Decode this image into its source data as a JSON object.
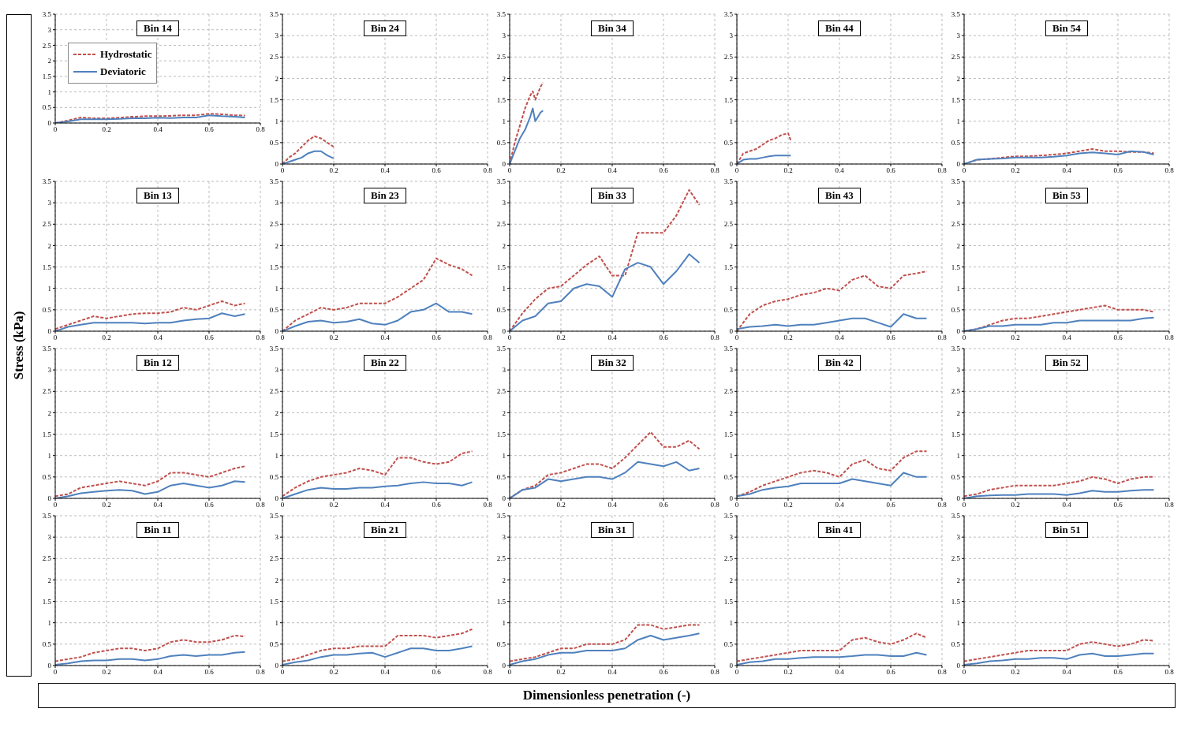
{
  "chart_data": [
    {
      "type": "line",
      "title": "Bin 14",
      "legend": "top left",
      "grid": true,
      "xlim": [
        0,
        0.8
      ],
      "ylim": [
        0,
        3.5
      ],
      "xticks": [
        0,
        0.2,
        0.4,
        0.6,
        0.8
      ],
      "yticks": [
        0,
        0.5,
        1,
        1.5,
        2,
        2.5,
        3,
        3.5
      ],
      "x": [
        0,
        0.05,
        0.1,
        0.15,
        0.2,
        0.25,
        0.3,
        0.35,
        0.4,
        0.45,
        0.5,
        0.55,
        0.6,
        0.65,
        0.7,
        0.74
      ],
      "series": [
        {
          "name": "Hydrostatic",
          "color": "#c0504d",
          "line_style": "dashed",
          "values": [
            0,
            0.08,
            0.18,
            0.15,
            0.15,
            0.17,
            0.2,
            0.22,
            0.22,
            0.23,
            0.25,
            0.25,
            0.3,
            0.28,
            0.25,
            0.24
          ]
        },
        {
          "name": "Deviatoric",
          "color": "#4f81bd",
          "line_style": "solid",
          "values": [
            0,
            0.05,
            0.12,
            0.12,
            0.12,
            0.13,
            0.15,
            0.15,
            0.17,
            0.16,
            0.18,
            0.18,
            0.25,
            0.22,
            0.2,
            0.18
          ]
        }
      ]
    },
    {
      "type": "line",
      "title": "Bin 24",
      "grid": true,
      "xlim": [
        0,
        0.8
      ],
      "ylim": [
        0,
        3.5
      ],
      "xticks": [
        0,
        0.2,
        0.4,
        0.6,
        0.8
      ],
      "yticks": [
        0,
        0.5,
        1,
        1.5,
        2,
        2.5,
        3,
        3.5
      ],
      "x": [
        0,
        0.025,
        0.05,
        0.075,
        0.1,
        0.125,
        0.15,
        0.175,
        0.2
      ],
      "series": [
        {
          "color": "#c0504d",
          "line_style": "dashed",
          "values": [
            0,
            0.15,
            0.25,
            0.4,
            0.55,
            0.65,
            0.6,
            0.5,
            0.4
          ]
        },
        {
          "color": "#4f81bd",
          "line_style": "solid",
          "values": [
            0,
            0.05,
            0.1,
            0.15,
            0.25,
            0.3,
            0.3,
            0.2,
            0.13
          ]
        }
      ]
    },
    {
      "type": "line",
      "title": "Bin 34",
      "grid": true,
      "xlim": [
        0,
        0.8
      ],
      "ylim": [
        0,
        3.5
      ],
      "xticks": [
        0,
        0.2,
        0.4,
        0.6,
        0.8
      ],
      "yticks": [
        0,
        0.5,
        1,
        1.5,
        2,
        2.5,
        3,
        3.5
      ],
      "x": [
        0,
        0.02,
        0.04,
        0.06,
        0.08,
        0.09,
        0.1,
        0.12,
        0.13
      ],
      "series": [
        {
          "color": "#c0504d",
          "line_style": "dashed",
          "values": [
            0,
            0.5,
            0.9,
            1.3,
            1.6,
            1.7,
            1.5,
            1.8,
            1.9
          ]
        },
        {
          "color": "#4f81bd",
          "line_style": "solid",
          "values": [
            0,
            0.3,
            0.6,
            0.8,
            1.1,
            1.3,
            1.0,
            1.2,
            1.25
          ]
        }
      ]
    },
    {
      "type": "line",
      "title": "Bin 44",
      "grid": true,
      "xlim": [
        0,
        0.8
      ],
      "ylim": [
        0,
        3.5
      ],
      "xticks": [
        0,
        0.2,
        0.4,
        0.6,
        0.8
      ],
      "yticks": [
        0,
        0.5,
        1,
        1.5,
        2,
        2.5,
        3,
        3.5
      ],
      "x": [
        0,
        0.025,
        0.05,
        0.075,
        0.1,
        0.125,
        0.15,
        0.175,
        0.2,
        0.21
      ],
      "series": [
        {
          "color": "#c0504d",
          "line_style": "dashed",
          "values": [
            0,
            0.25,
            0.3,
            0.35,
            0.45,
            0.55,
            0.6,
            0.68,
            0.72,
            0.55
          ]
        },
        {
          "color": "#4f81bd",
          "line_style": "solid",
          "values": [
            0,
            0.1,
            0.12,
            0.12,
            0.15,
            0.18,
            0.2,
            0.2,
            0.2,
            0.2
          ]
        }
      ]
    },
    {
      "type": "line",
      "title": "Bin 54",
      "grid": true,
      "xlim": [
        0,
        0.8
      ],
      "ylim": [
        0,
        3.5
      ],
      "xticks": [
        0,
        0.2,
        0.4,
        0.6,
        0.8
      ],
      "yticks": [
        0,
        0.5,
        1,
        1.5,
        2,
        2.5,
        3,
        3.5
      ],
      "x": [
        0,
        0.05,
        0.1,
        0.15,
        0.2,
        0.25,
        0.3,
        0.35,
        0.4,
        0.45,
        0.5,
        0.55,
        0.6,
        0.65,
        0.7,
        0.74
      ],
      "series": [
        {
          "color": "#c0504d",
          "line_style": "dashed",
          "values": [
            0,
            0.1,
            0.12,
            0.15,
            0.18,
            0.18,
            0.2,
            0.22,
            0.25,
            0.3,
            0.35,
            0.3,
            0.3,
            0.28,
            0.28,
            0.25
          ]
        },
        {
          "color": "#4f81bd",
          "line_style": "solid",
          "values": [
            0,
            0.1,
            0.12,
            0.13,
            0.15,
            0.15,
            0.15,
            0.17,
            0.2,
            0.25,
            0.27,
            0.25,
            0.22,
            0.3,
            0.28,
            0.22
          ]
        }
      ]
    },
    {
      "type": "line",
      "title": "Bin 13",
      "grid": true,
      "xlim": [
        0,
        0.8
      ],
      "ylim": [
        0,
        3.5
      ],
      "xticks": [
        0,
        0.2,
        0.4,
        0.6,
        0.8
      ],
      "yticks": [
        0,
        0.5,
        1,
        1.5,
        2,
        2.5,
        3,
        3.5
      ],
      "x": [
        0,
        0.05,
        0.1,
        0.15,
        0.2,
        0.25,
        0.3,
        0.35,
        0.4,
        0.45,
        0.5,
        0.55,
        0.6,
        0.65,
        0.7,
        0.74
      ],
      "series": [
        {
          "color": "#c0504d",
          "line_style": "dashed",
          "values": [
            0.05,
            0.15,
            0.25,
            0.35,
            0.3,
            0.35,
            0.4,
            0.42,
            0.42,
            0.45,
            0.55,
            0.5,
            0.6,
            0.7,
            0.6,
            0.65
          ]
        },
        {
          "color": "#4f81bd",
          "line_style": "solid",
          "values": [
            0,
            0.1,
            0.15,
            0.2,
            0.2,
            0.2,
            0.2,
            0.18,
            0.2,
            0.2,
            0.25,
            0.28,
            0.3,
            0.42,
            0.35,
            0.4
          ]
        }
      ]
    },
    {
      "type": "line",
      "title": "Bin 23",
      "grid": true,
      "xlim": [
        0,
        0.8
      ],
      "ylim": [
        0,
        3.5
      ],
      "xticks": [
        0,
        0.2,
        0.4,
        0.6,
        0.8
      ],
      "yticks": [
        0,
        0.5,
        1,
        1.5,
        2,
        2.5,
        3,
        3.5
      ],
      "x": [
        0,
        0.05,
        0.1,
        0.15,
        0.2,
        0.25,
        0.3,
        0.35,
        0.4,
        0.45,
        0.5,
        0.55,
        0.6,
        0.65,
        0.7,
        0.74
      ],
      "series": [
        {
          "color": "#c0504d",
          "line_style": "dashed",
          "values": [
            0,
            0.25,
            0.4,
            0.55,
            0.5,
            0.55,
            0.65,
            0.65,
            0.65,
            0.8,
            1.0,
            1.2,
            1.7,
            1.55,
            1.45,
            1.3
          ]
        },
        {
          "color": "#4f81bd",
          "line_style": "solid",
          "values": [
            0,
            0.12,
            0.22,
            0.25,
            0.2,
            0.22,
            0.28,
            0.18,
            0.15,
            0.25,
            0.45,
            0.5,
            0.65,
            0.45,
            0.45,
            0.4
          ]
        }
      ]
    },
    {
      "type": "line",
      "title": "Bin 33",
      "grid": true,
      "xlim": [
        0,
        0.8
      ],
      "ylim": [
        0,
        3.5
      ],
      "xticks": [
        0,
        0.2,
        0.4,
        0.6,
        0.8
      ],
      "yticks": [
        0,
        0.5,
        1,
        1.5,
        2,
        2.5,
        3,
        3.5
      ],
      "x": [
        0,
        0.05,
        0.1,
        0.15,
        0.2,
        0.25,
        0.3,
        0.35,
        0.4,
        0.45,
        0.5,
        0.55,
        0.6,
        0.65,
        0.7,
        0.74
      ],
      "series": [
        {
          "color": "#c0504d",
          "line_style": "dashed",
          "values": [
            0,
            0.42,
            0.75,
            1.0,
            1.05,
            1.3,
            1.55,
            1.75,
            1.3,
            1.3,
            2.3,
            2.3,
            2.3,
            2.7,
            3.3,
            2.95
          ]
        },
        {
          "color": "#4f81bd",
          "line_style": "solid",
          "values": [
            0,
            0.25,
            0.35,
            0.65,
            0.7,
            1.0,
            1.1,
            1.05,
            0.8,
            1.45,
            1.6,
            1.5,
            1.1,
            1.4,
            1.8,
            1.6
          ]
        }
      ]
    },
    {
      "type": "line",
      "title": "Bin 43",
      "grid": true,
      "xlim": [
        0,
        0.8
      ],
      "ylim": [
        0,
        3.5
      ],
      "xticks": [
        0,
        0.2,
        0.4,
        0.6,
        0.8
      ],
      "yticks": [
        0,
        0.5,
        1,
        1.5,
        2,
        2.5,
        3,
        3.5
      ],
      "x": [
        0,
        0.05,
        0.1,
        0.15,
        0.2,
        0.25,
        0.3,
        0.35,
        0.4,
        0.45,
        0.5,
        0.55,
        0.6,
        0.65,
        0.7,
        0.74
      ],
      "series": [
        {
          "color": "#c0504d",
          "line_style": "dashed",
          "values": [
            0,
            0.4,
            0.6,
            0.7,
            0.75,
            0.85,
            0.9,
            1.0,
            0.95,
            1.2,
            1.3,
            1.05,
            1.0,
            1.3,
            1.35,
            1.4
          ]
        },
        {
          "color": "#4f81bd",
          "line_style": "solid",
          "values": [
            0.05,
            0.1,
            0.12,
            0.15,
            0.12,
            0.15,
            0.15,
            0.2,
            0.25,
            0.3,
            0.3,
            0.2,
            0.1,
            0.4,
            0.3,
            0.3
          ]
        }
      ]
    },
    {
      "type": "line",
      "title": "Bin 53",
      "grid": true,
      "xlim": [
        0,
        0.8
      ],
      "ylim": [
        0,
        3.5
      ],
      "xticks": [
        0,
        0.2,
        0.4,
        0.6,
        0.8
      ],
      "yticks": [
        0,
        0.5,
        1,
        1.5,
        2,
        2.5,
        3,
        3.5
      ],
      "x": [
        0,
        0.05,
        0.1,
        0.15,
        0.2,
        0.25,
        0.3,
        0.35,
        0.4,
        0.45,
        0.5,
        0.55,
        0.6,
        0.65,
        0.7,
        0.74
      ],
      "series": [
        {
          "color": "#c0504d",
          "line_style": "dashed",
          "values": [
            0,
            0.05,
            0.15,
            0.25,
            0.3,
            0.3,
            0.35,
            0.4,
            0.45,
            0.5,
            0.55,
            0.6,
            0.5,
            0.5,
            0.5,
            0.45
          ]
        },
        {
          "color": "#4f81bd",
          "line_style": "solid",
          "values": [
            0,
            0.05,
            0.12,
            0.12,
            0.15,
            0.15,
            0.15,
            0.2,
            0.2,
            0.25,
            0.25,
            0.25,
            0.25,
            0.25,
            0.3,
            0.32
          ]
        }
      ]
    },
    {
      "type": "line",
      "title": "Bin 12",
      "grid": true,
      "xlim": [
        0,
        0.8
      ],
      "ylim": [
        0,
        3.5
      ],
      "xticks": [
        0,
        0.2,
        0.4,
        0.6,
        0.8
      ],
      "yticks": [
        0,
        0.5,
        1,
        1.5,
        2,
        2.5,
        3,
        3.5
      ],
      "x": [
        0,
        0.05,
        0.1,
        0.15,
        0.2,
        0.25,
        0.3,
        0.35,
        0.4,
        0.45,
        0.5,
        0.55,
        0.6,
        0.65,
        0.7,
        0.74
      ],
      "series": [
        {
          "color": "#c0504d",
          "line_style": "dashed",
          "values": [
            0.05,
            0.1,
            0.25,
            0.3,
            0.35,
            0.4,
            0.35,
            0.3,
            0.4,
            0.6,
            0.6,
            0.55,
            0.5,
            0.6,
            0.7,
            0.75
          ]
        },
        {
          "color": "#4f81bd",
          "line_style": "solid",
          "values": [
            0,
            0.05,
            0.12,
            0.15,
            0.18,
            0.2,
            0.18,
            0.1,
            0.15,
            0.3,
            0.35,
            0.3,
            0.25,
            0.3,
            0.4,
            0.38
          ]
        }
      ]
    },
    {
      "type": "line",
      "title": "Bin 22",
      "grid": true,
      "xlim": [
        0,
        0.8
      ],
      "ylim": [
        0,
        3.5
      ],
      "xticks": [
        0,
        0.2,
        0.4,
        0.6,
        0.8
      ],
      "yticks": [
        0,
        0.5,
        1,
        1.5,
        2,
        2.5,
        3,
        3.5
      ],
      "x": [
        0,
        0.05,
        0.1,
        0.15,
        0.2,
        0.25,
        0.3,
        0.35,
        0.4,
        0.45,
        0.5,
        0.55,
        0.6,
        0.65,
        0.7,
        0.74
      ],
      "series": [
        {
          "color": "#c0504d",
          "line_style": "dashed",
          "values": [
            0.05,
            0.25,
            0.4,
            0.5,
            0.55,
            0.6,
            0.7,
            0.65,
            0.55,
            0.95,
            0.95,
            0.85,
            0.8,
            0.85,
            1.05,
            1.1
          ]
        },
        {
          "color": "#4f81bd",
          "line_style": "solid",
          "values": [
            0,
            0.1,
            0.2,
            0.25,
            0.22,
            0.22,
            0.25,
            0.25,
            0.28,
            0.3,
            0.35,
            0.38,
            0.35,
            0.35,
            0.3,
            0.38
          ]
        }
      ]
    },
    {
      "type": "line",
      "title": "Bin 32",
      "grid": true,
      "xlim": [
        0,
        0.8
      ],
      "ylim": [
        0,
        3.5
      ],
      "xticks": [
        0,
        0.2,
        0.4,
        0.6,
        0.8
      ],
      "yticks": [
        0,
        0.5,
        1,
        1.5,
        2,
        2.5,
        3,
        3.5
      ],
      "x": [
        0,
        0.05,
        0.1,
        0.15,
        0.2,
        0.25,
        0.3,
        0.35,
        0.4,
        0.45,
        0.5,
        0.55,
        0.6,
        0.65,
        0.7,
        0.74
      ],
      "series": [
        {
          "color": "#c0504d",
          "line_style": "dashed",
          "values": [
            0,
            0.2,
            0.3,
            0.55,
            0.6,
            0.7,
            0.8,
            0.8,
            0.7,
            0.95,
            1.25,
            1.55,
            1.2,
            1.2,
            1.35,
            1.15
          ]
        },
        {
          "color": "#4f81bd",
          "line_style": "solid",
          "values": [
            0,
            0.2,
            0.25,
            0.45,
            0.4,
            0.45,
            0.5,
            0.5,
            0.45,
            0.6,
            0.85,
            0.8,
            0.75,
            0.85,
            0.65,
            0.7
          ]
        }
      ]
    },
    {
      "type": "line",
      "title": "Bin 42",
      "grid": true,
      "xlim": [
        0,
        0.8
      ],
      "ylim": [
        0,
        3.5
      ],
      "xticks": [
        0,
        0.2,
        0.4,
        0.6,
        0.8
      ],
      "yticks": [
        0,
        0.5,
        1,
        1.5,
        2,
        2.5,
        3,
        3.5
      ],
      "x": [
        0,
        0.05,
        0.1,
        0.15,
        0.2,
        0.25,
        0.3,
        0.35,
        0.4,
        0.45,
        0.5,
        0.55,
        0.6,
        0.65,
        0.7,
        0.74
      ],
      "series": [
        {
          "color": "#c0504d",
          "line_style": "dashed",
          "values": [
            0.05,
            0.15,
            0.3,
            0.4,
            0.5,
            0.6,
            0.65,
            0.6,
            0.5,
            0.8,
            0.9,
            0.7,
            0.65,
            0.95,
            1.1,
            1.1
          ]
        },
        {
          "color": "#4f81bd",
          "line_style": "solid",
          "values": [
            0.05,
            0.1,
            0.2,
            0.25,
            0.28,
            0.35,
            0.35,
            0.35,
            0.35,
            0.45,
            0.4,
            0.35,
            0.3,
            0.6,
            0.5,
            0.5
          ]
        }
      ]
    },
    {
      "type": "line",
      "title": "Bin 52",
      "grid": true,
      "xlim": [
        0,
        0.8
      ],
      "ylim": [
        0,
        3.5
      ],
      "xticks": [
        0,
        0.2,
        0.4,
        0.6,
        0.8
      ],
      "yticks": [
        0,
        0.5,
        1,
        1.5,
        2,
        2.5,
        3,
        3.5
      ],
      "x": [
        0,
        0.05,
        0.1,
        0.15,
        0.2,
        0.25,
        0.3,
        0.35,
        0.4,
        0.45,
        0.5,
        0.55,
        0.6,
        0.65,
        0.7,
        0.74
      ],
      "series": [
        {
          "color": "#c0504d",
          "line_style": "dashed",
          "values": [
            0.05,
            0.1,
            0.2,
            0.25,
            0.3,
            0.3,
            0.3,
            0.3,
            0.35,
            0.4,
            0.5,
            0.45,
            0.35,
            0.45,
            0.5,
            0.5
          ]
        },
        {
          "color": "#4f81bd",
          "line_style": "solid",
          "values": [
            0,
            0.05,
            0.07,
            0.08,
            0.08,
            0.1,
            0.1,
            0.1,
            0.08,
            0.12,
            0.18,
            0.15,
            0.15,
            0.18,
            0.2,
            0.2
          ]
        }
      ]
    },
    {
      "type": "line",
      "title": "Bin 11",
      "grid": true,
      "xlim": [
        0,
        0.8
      ],
      "ylim": [
        0,
        3.5
      ],
      "xticks": [
        0,
        0.2,
        0.4,
        0.6,
        0.8
      ],
      "yticks": [
        0,
        0.5,
        1,
        1.5,
        2,
        2.5,
        3,
        3.5
      ],
      "x": [
        0,
        0.05,
        0.1,
        0.15,
        0.2,
        0.25,
        0.3,
        0.35,
        0.4,
        0.45,
        0.5,
        0.55,
        0.6,
        0.65,
        0.7,
        0.74
      ],
      "series": [
        {
          "color": "#c0504d",
          "line_style": "dashed",
          "values": [
            0.1,
            0.15,
            0.2,
            0.3,
            0.35,
            0.4,
            0.4,
            0.35,
            0.4,
            0.55,
            0.6,
            0.55,
            0.55,
            0.6,
            0.7,
            0.68
          ]
        },
        {
          "color": "#4f81bd",
          "line_style": "solid",
          "values": [
            0.02,
            0.05,
            0.1,
            0.12,
            0.12,
            0.15,
            0.15,
            0.12,
            0.15,
            0.22,
            0.25,
            0.22,
            0.25,
            0.25,
            0.3,
            0.32
          ]
        }
      ]
    },
    {
      "type": "line",
      "title": "Bin 21",
      "grid": true,
      "xlim": [
        0,
        0.8
      ],
      "ylim": [
        0,
        3.5
      ],
      "xticks": [
        0,
        0.2,
        0.4,
        0.6,
        0.8
      ],
      "yticks": [
        0,
        0.5,
        1,
        1.5,
        2,
        2.5,
        3,
        3.5
      ],
      "x": [
        0,
        0.05,
        0.1,
        0.15,
        0.2,
        0.25,
        0.3,
        0.35,
        0.4,
        0.45,
        0.5,
        0.55,
        0.6,
        0.65,
        0.7,
        0.74
      ],
      "series": [
        {
          "color": "#c0504d",
          "line_style": "dashed",
          "values": [
            0.1,
            0.15,
            0.25,
            0.35,
            0.4,
            0.4,
            0.45,
            0.45,
            0.45,
            0.7,
            0.7,
            0.7,
            0.65,
            0.7,
            0.75,
            0.85
          ]
        },
        {
          "color": "#4f81bd",
          "line_style": "solid",
          "values": [
            0.02,
            0.08,
            0.12,
            0.2,
            0.25,
            0.25,
            0.28,
            0.3,
            0.2,
            0.3,
            0.4,
            0.4,
            0.35,
            0.35,
            0.4,
            0.45
          ]
        }
      ]
    },
    {
      "type": "line",
      "title": "Bin 31",
      "grid": true,
      "xlim": [
        0,
        0.8
      ],
      "ylim": [
        0,
        3.5
      ],
      "xticks": [
        0,
        0.2,
        0.4,
        0.6,
        0.8
      ],
      "yticks": [
        0,
        0.5,
        1,
        1.5,
        2,
        2.5,
        3,
        3.5
      ],
      "x": [
        0,
        0.05,
        0.1,
        0.15,
        0.2,
        0.25,
        0.3,
        0.35,
        0.4,
        0.45,
        0.5,
        0.55,
        0.6,
        0.65,
        0.7,
        0.74
      ],
      "series": [
        {
          "color": "#c0504d",
          "line_style": "dashed",
          "values": [
            0.1,
            0.15,
            0.2,
            0.3,
            0.4,
            0.4,
            0.5,
            0.5,
            0.5,
            0.6,
            0.95,
            0.95,
            0.85,
            0.9,
            0.95,
            0.95
          ]
        },
        {
          "color": "#4f81bd",
          "line_style": "solid",
          "values": [
            0.02,
            0.1,
            0.15,
            0.25,
            0.3,
            0.3,
            0.35,
            0.35,
            0.35,
            0.4,
            0.6,
            0.7,
            0.6,
            0.65,
            0.7,
            0.75
          ]
        }
      ]
    },
    {
      "type": "line",
      "title": "Bin 41",
      "grid": true,
      "xlim": [
        0,
        0.8
      ],
      "ylim": [
        0,
        3.5
      ],
      "xticks": [
        0,
        0.2,
        0.4,
        0.6,
        0.8
      ],
      "yticks": [
        0,
        0.5,
        1,
        1.5,
        2,
        2.5,
        3,
        3.5
      ],
      "x": [
        0,
        0.05,
        0.1,
        0.15,
        0.2,
        0.25,
        0.3,
        0.35,
        0.4,
        0.45,
        0.5,
        0.55,
        0.6,
        0.65,
        0.7,
        0.74
      ],
      "series": [
        {
          "color": "#c0504d",
          "line_style": "dashed",
          "values": [
            0.1,
            0.15,
            0.2,
            0.25,
            0.3,
            0.35,
            0.35,
            0.35,
            0.35,
            0.6,
            0.65,
            0.55,
            0.5,
            0.6,
            0.75,
            0.65
          ]
        },
        {
          "color": "#4f81bd",
          "line_style": "solid",
          "values": [
            0.02,
            0.08,
            0.1,
            0.15,
            0.15,
            0.18,
            0.2,
            0.2,
            0.2,
            0.22,
            0.25,
            0.25,
            0.22,
            0.22,
            0.3,
            0.25
          ]
        }
      ]
    },
    {
      "type": "line",
      "title": "Bin 51",
      "grid": true,
      "xlim": [
        0,
        0.8
      ],
      "ylim": [
        0,
        3.5
      ],
      "xticks": [
        0,
        0.2,
        0.4,
        0.6,
        0.8
      ],
      "yticks": [
        0,
        0.5,
        1,
        1.5,
        2,
        2.5,
        3,
        3.5
      ],
      "x": [
        0,
        0.05,
        0.1,
        0.15,
        0.2,
        0.25,
        0.3,
        0.35,
        0.4,
        0.45,
        0.5,
        0.55,
        0.6,
        0.65,
        0.7,
        0.74
      ],
      "series": [
        {
          "color": "#c0504d",
          "line_style": "dashed",
          "values": [
            0.1,
            0.15,
            0.2,
            0.25,
            0.3,
            0.35,
            0.35,
            0.35,
            0.35,
            0.5,
            0.55,
            0.5,
            0.45,
            0.5,
            0.6,
            0.58
          ]
        },
        {
          "color": "#4f81bd",
          "line_style": "solid",
          "values": [
            0.02,
            0.05,
            0.1,
            0.12,
            0.15,
            0.15,
            0.18,
            0.18,
            0.15,
            0.25,
            0.28,
            0.22,
            0.22,
            0.25,
            0.28,
            0.28
          ]
        }
      ]
    },
    {
      "type": "other",
      "annotations": [
        "Stress (kPa)",
        "Dimensionless penetration (-)"
      ]
    }
  ]
}
